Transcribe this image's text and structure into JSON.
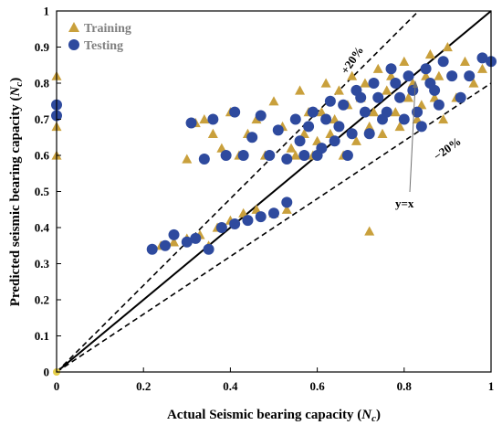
{
  "chart_data": {
    "type": "scatter",
    "title": "",
    "xlabel_main": "Actual Seismic bearing capacity (",
    "xlabel_symbol": "N",
    "xlabel_sub": "c",
    "xlabel_end": ")",
    "ylabel_main": "Predicted seismic bearing capacity (",
    "ylabel_symbol": "N",
    "ylabel_sub": "c",
    "ylabel_end": ")",
    "xlim": [
      0,
      1
    ],
    "ylim": [
      0,
      1
    ],
    "xticks": [
      "0",
      "0.2",
      "0.4",
      "0.6",
      "0.8",
      "1"
    ],
    "yticks": [
      "0",
      "0.1",
      "0.2",
      "0.3",
      "0.4",
      "0.5",
      "0.6",
      "0.7",
      "0.8",
      "0.9",
      "1"
    ],
    "grid": false,
    "legend_position": "top-left",
    "colors": {
      "training": "#C9A03C",
      "testing": "#2E4A9E"
    },
    "annotations": {
      "plus20": "+20%",
      "minus20": "−20%",
      "yx": "y=x"
    },
    "series": [
      {
        "name": "Training",
        "marker": "triangle",
        "points": [
          [
            0,
            0.82
          ],
          [
            0,
            0.68
          ],
          [
            0,
            0.6
          ],
          [
            0.72,
            0.39
          ],
          [
            0.24,
            0.35
          ],
          [
            0.27,
            0.36
          ],
          [
            0.3,
            0.37
          ],
          [
            0.33,
            0.38
          ],
          [
            0.35,
            0.35
          ],
          [
            0.37,
            0.4
          ],
          [
            0.4,
            0.42
          ],
          [
            0.43,
            0.44
          ],
          [
            0.46,
            0.45
          ],
          [
            0.5,
            0.44
          ],
          [
            0.53,
            0.45
          ],
          [
            0.3,
            0.59
          ],
          [
            0.32,
            0.69
          ],
          [
            0.34,
            0.7
          ],
          [
            0.36,
            0.66
          ],
          [
            0.38,
            0.62
          ],
          [
            0.4,
            0.72
          ],
          [
            0.42,
            0.6
          ],
          [
            0.44,
            0.66
          ],
          [
            0.46,
            0.7
          ],
          [
            0.48,
            0.6
          ],
          [
            0.5,
            0.75
          ],
          [
            0.52,
            0.68
          ],
          [
            0.54,
            0.62
          ],
          [
            0.56,
            0.78
          ],
          [
            0.58,
            0.72
          ],
          [
            0.6,
            0.64
          ],
          [
            0.62,
            0.8
          ],
          [
            0.64,
            0.7
          ],
          [
            0.66,
            0.6
          ],
          [
            0.68,
            0.82
          ],
          [
            0.7,
            0.76
          ],
          [
            0.72,
            0.68
          ],
          [
            0.74,
            0.84
          ],
          [
            0.76,
            0.78
          ],
          [
            0.78,
            0.72
          ],
          [
            0.8,
            0.86
          ],
          [
            0.82,
            0.8
          ],
          [
            0.84,
            0.74
          ],
          [
            0.86,
            0.88
          ],
          [
            0.88,
            0.82
          ],
          [
            0.9,
            0.9
          ],
          [
            0.92,
            0.76
          ],
          [
            0.94,
            0.86
          ],
          [
            0.96,
            0.8
          ],
          [
            0.98,
            0.84
          ],
          [
            0.61,
            0.72
          ],
          [
            0.63,
            0.66
          ],
          [
            0.67,
            0.74
          ],
          [
            0.69,
            0.64
          ],
          [
            0.71,
            0.8
          ],
          [
            0.73,
            0.72
          ],
          [
            0.75,
            0.66
          ],
          [
            0.77,
            0.82
          ],
          [
            0.79,
            0.68
          ],
          [
            0.81,
            0.76
          ],
          [
            0.83,
            0.7
          ],
          [
            0.85,
            0.82
          ],
          [
            0.55,
            0.6
          ],
          [
            0.57,
            0.66
          ],
          [
            0.59,
            0.6
          ],
          [
            0.65,
            0.78
          ],
          [
            0.87,
            0.76
          ],
          [
            0.89,
            0.7
          ]
        ]
      },
      {
        "name": "Testing",
        "marker": "circle",
        "points": [
          [
            0,
            0.74
          ],
          [
            0,
            0.71
          ],
          [
            1.0,
            0.86
          ],
          [
            0.98,
            0.87
          ],
          [
            0.95,
            0.82
          ],
          [
            0.22,
            0.34
          ],
          [
            0.25,
            0.35
          ],
          [
            0.27,
            0.38
          ],
          [
            0.3,
            0.36
          ],
          [
            0.32,
            0.37
          ],
          [
            0.35,
            0.34
          ],
          [
            0.38,
            0.4
          ],
          [
            0.41,
            0.41
          ],
          [
            0.44,
            0.42
          ],
          [
            0.47,
            0.43
          ],
          [
            0.5,
            0.44
          ],
          [
            0.53,
            0.47
          ],
          [
            0.31,
            0.69
          ],
          [
            0.34,
            0.59
          ],
          [
            0.36,
            0.7
          ],
          [
            0.39,
            0.6
          ],
          [
            0.41,
            0.72
          ],
          [
            0.43,
            0.6
          ],
          [
            0.45,
            0.65
          ],
          [
            0.47,
            0.71
          ],
          [
            0.49,
            0.6
          ],
          [
            0.51,
            0.67
          ],
          [
            0.53,
            0.59
          ],
          [
            0.55,
            0.7
          ],
          [
            0.57,
            0.6
          ],
          [
            0.59,
            0.72
          ],
          [
            0.61,
            0.62
          ],
          [
            0.63,
            0.75
          ],
          [
            0.65,
            0.68
          ],
          [
            0.67,
            0.6
          ],
          [
            0.69,
            0.78
          ],
          [
            0.71,
            0.72
          ],
          [
            0.73,
            0.8
          ],
          [
            0.75,
            0.7
          ],
          [
            0.77,
            0.84
          ],
          [
            0.79,
            0.76
          ],
          [
            0.81,
            0.82
          ],
          [
            0.83,
            0.72
          ],
          [
            0.85,
            0.84
          ],
          [
            0.87,
            0.78
          ],
          [
            0.89,
            0.86
          ],
          [
            0.91,
            0.82
          ],
          [
            0.93,
            0.76
          ],
          [
            0.62,
            0.7
          ],
          [
            0.64,
            0.64
          ],
          [
            0.66,
            0.74
          ],
          [
            0.68,
            0.66
          ],
          [
            0.7,
            0.76
          ],
          [
            0.72,
            0.66
          ],
          [
            0.74,
            0.76
          ],
          [
            0.76,
            0.72
          ],
          [
            0.78,
            0.8
          ],
          [
            0.8,
            0.7
          ],
          [
            0.82,
            0.78
          ],
          [
            0.84,
            0.68
          ],
          [
            0.86,
            0.8
          ],
          [
            0.88,
            0.74
          ],
          [
            0.6,
            0.6
          ],
          [
            0.58,
            0.68
          ],
          [
            0.56,
            0.64
          ]
        ]
      }
    ]
  }
}
